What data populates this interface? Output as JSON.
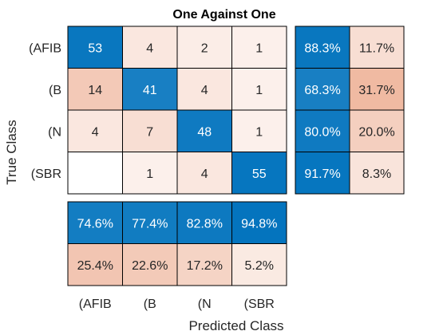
{
  "chart_data": {
    "type": "heatmap",
    "title": "One Against One",
    "xlabel": "Predicted Class",
    "ylabel": "True Class",
    "classes": [
      "(AFIB",
      "(B",
      "(N",
      "(SBR"
    ],
    "matrix": [
      [
        53,
        4,
        2,
        1
      ],
      [
        14,
        41,
        4,
        1
      ],
      [
        4,
        7,
        48,
        1
      ],
      [
        0,
        1,
        4,
        55
      ]
    ],
    "row_summary": [
      [
        "88.3%",
        "11.7%"
      ],
      [
        "68.3%",
        "31.7%"
      ],
      [
        "80.0%",
        "20.0%"
      ],
      [
        "91.7%",
        "8.3%"
      ]
    ],
    "column_summary": [
      [
        "74.6%",
        "77.4%",
        "82.8%",
        "94.8%"
      ],
      [
        "25.4%",
        "22.6%",
        "17.2%",
        "5.2%"
      ]
    ],
    "colors": {
      "correct": "#0072bd",
      "incorrect": "#d95319",
      "text_dark": "#262626",
      "text_light": "#ffffff"
    }
  }
}
